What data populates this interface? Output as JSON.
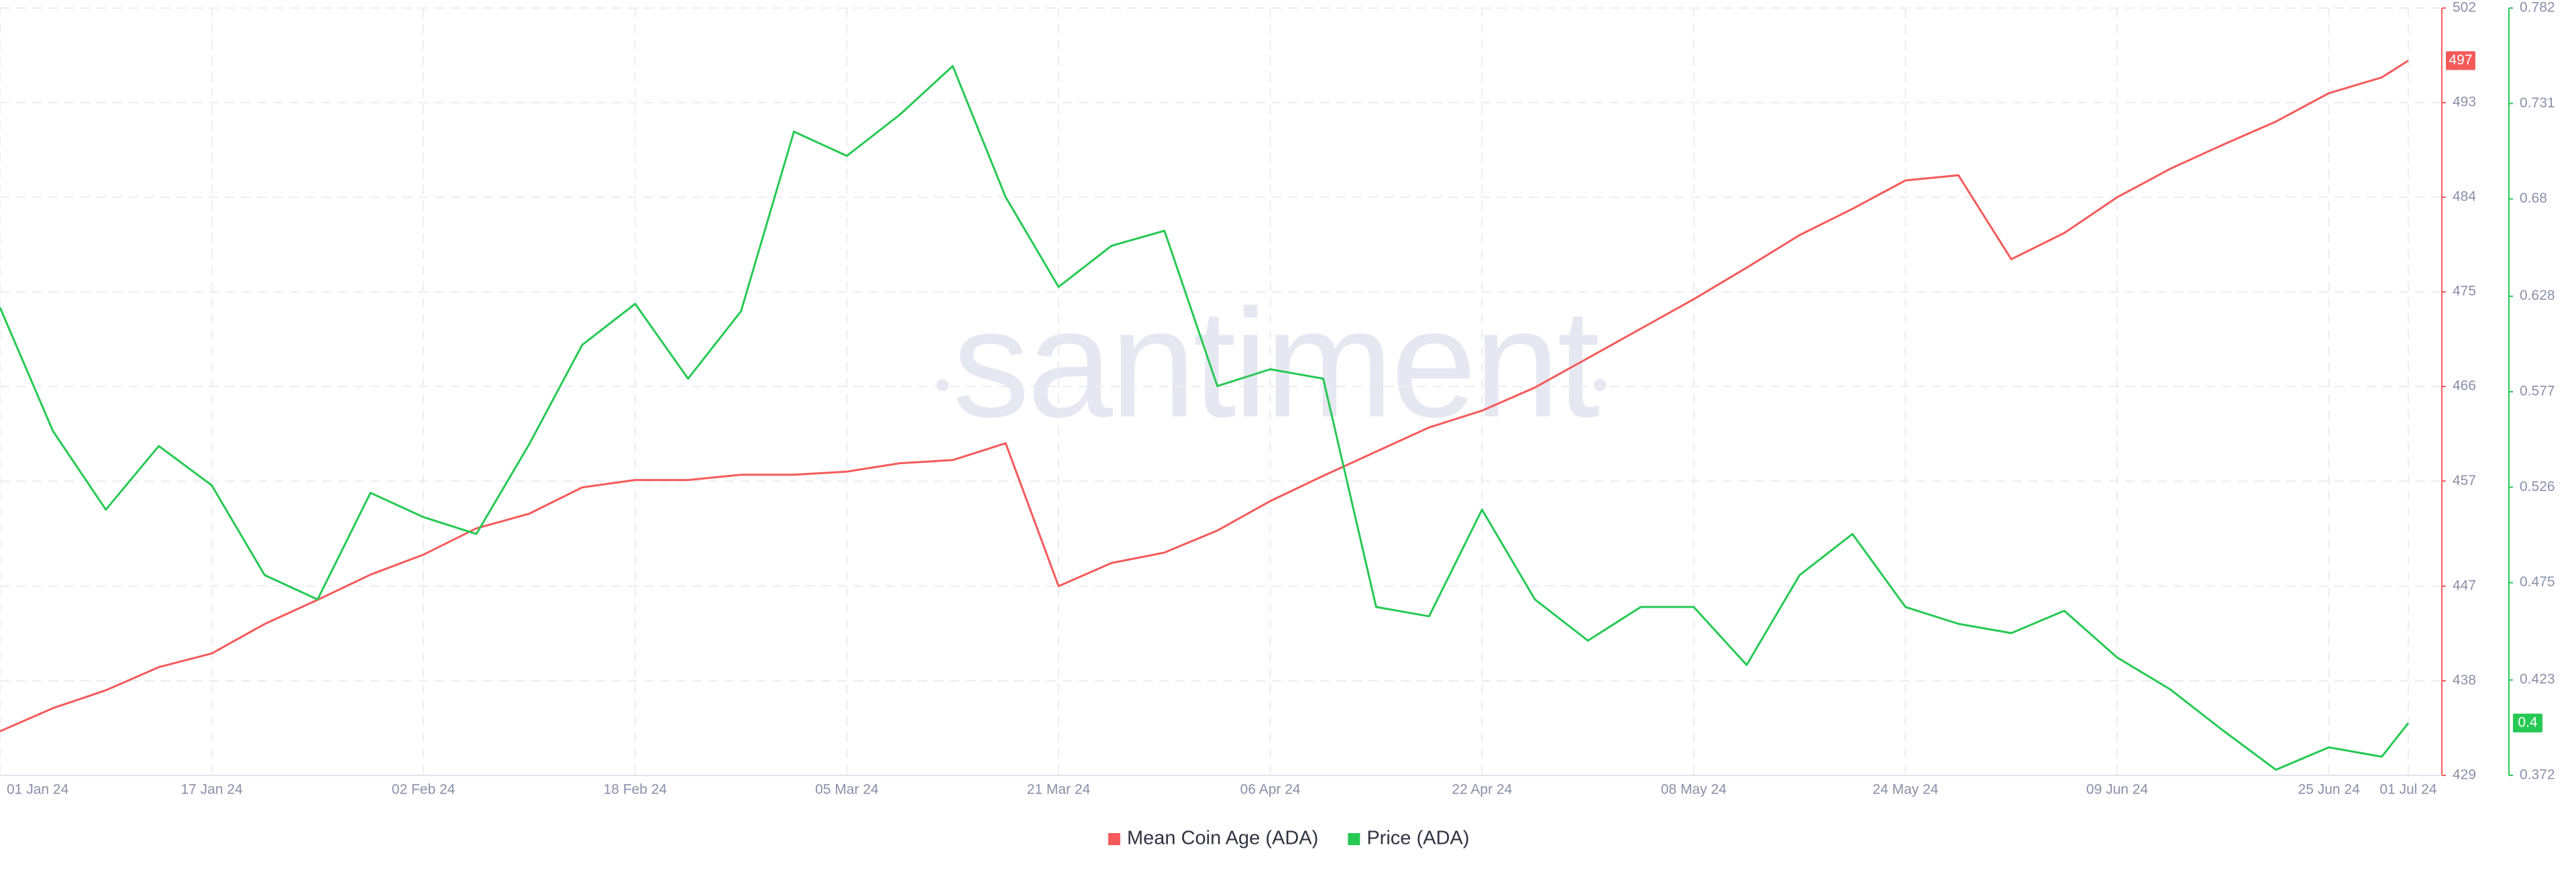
{
  "chart_data": {
    "type": "line",
    "watermark": "santiment",
    "x": [
      "2024-01-01",
      "2024-01-05",
      "2024-01-09",
      "2024-01-13",
      "2024-01-17",
      "2024-01-21",
      "2024-01-25",
      "2024-01-29",
      "2024-02-02",
      "2024-02-06",
      "2024-02-10",
      "2024-02-14",
      "2024-02-18",
      "2024-02-22",
      "2024-02-26",
      "2024-03-01",
      "2024-03-05",
      "2024-03-09",
      "2024-03-13",
      "2024-03-17",
      "2024-03-21",
      "2024-03-25",
      "2024-03-29",
      "2024-04-02",
      "2024-04-06",
      "2024-04-10",
      "2024-04-14",
      "2024-04-18",
      "2024-04-22",
      "2024-04-26",
      "2024-04-30",
      "2024-05-04",
      "2024-05-08",
      "2024-05-12",
      "2024-05-16",
      "2024-05-20",
      "2024-05-24",
      "2024-05-28",
      "2024-06-01",
      "2024-06-05",
      "2024-06-09",
      "2024-06-13",
      "2024-06-17",
      "2024-06-21",
      "2024-06-25",
      "2024-06-29",
      "2024-07-01"
    ],
    "xlim": [
      "2024-01-01",
      "2024-07-01"
    ],
    "xticks": [
      {
        "value": "2024-01-01",
        "label": "01 Jan 24"
      },
      {
        "value": "2024-01-17",
        "label": "17 Jan 24"
      },
      {
        "value": "2024-02-02",
        "label": "02 Feb 24"
      },
      {
        "value": "2024-02-18",
        "label": "18 Feb 24"
      },
      {
        "value": "2024-03-05",
        "label": "05 Mar 24"
      },
      {
        "value": "2024-03-21",
        "label": "21 Mar 24"
      },
      {
        "value": "2024-04-06",
        "label": "06 Apr 24"
      },
      {
        "value": "2024-04-22",
        "label": "22 Apr 24"
      },
      {
        "value": "2024-05-08",
        "label": "08 May 24"
      },
      {
        "value": "2024-05-24",
        "label": "24 May 24"
      },
      {
        "value": "2024-06-09",
        "label": "09 Jun 24"
      },
      {
        "value": "2024-06-25",
        "label": "25 Jun 24"
      },
      {
        "value": "2024-07-01",
        "label": "01 Jul 24"
      }
    ],
    "ylim": [
      429,
      502
    ],
    "yticks": [
      429,
      438,
      447,
      457,
      466,
      475,
      484,
      493,
      502
    ],
    "y2lim": [
      0.372,
      0.782
    ],
    "y2ticks": [
      0.372,
      0.423,
      0.475,
      0.526,
      0.577,
      0.628,
      0.68,
      0.731,
      0.782
    ],
    "grid": true,
    "legend": "bottom",
    "series": [
      {
        "name": "Mean Coin Age (ADA)",
        "color": "#f55a5a",
        "axis": "y",
        "values": [
          433.2,
          435.4,
          437.1,
          439.3,
          440.6,
          443.4,
          445.7,
          448.1,
          450.0,
          452.5,
          453.9,
          456.4,
          457.1,
          457.1,
          457.6,
          457.6,
          457.9,
          458.7,
          459.0,
          460.6,
          447.0,
          449.2,
          450.2,
          452.3,
          455.1,
          457.5,
          459.8,
          462.1,
          463.7,
          465.9,
          468.7,
          471.5,
          474.3,
          477.3,
          480.4,
          482.9,
          485.6,
          486.1,
          478.1,
          480.6,
          484.0,
          486.7,
          489.0,
          491.2,
          493.9,
          495.4,
          497
        ]
      },
      {
        "name": "Price (ADA)",
        "color": "#26c953",
        "axis": "y2",
        "values": [
          0.622,
          0.556,
          0.514,
          0.548,
          0.527,
          0.479,
          0.466,
          0.523,
          0.51,
          0.501,
          0.549,
          0.602,
          0.624,
          0.584,
          0.62,
          0.716,
          0.703,
          0.725,
          0.751,
          0.681,
          0.633,
          0.655,
          0.663,
          0.58,
          0.589,
          0.584,
          0.462,
          0.457,
          0.514,
          0.466,
          0.444,
          0.462,
          0.462,
          0.431,
          0.479,
          0.501,
          0.462,
          0.453,
          0.448,
          0.46,
          0.435,
          0.418,
          0.396,
          0.375,
          0.387,
          0.382,
          0.4
        ]
      }
    ]
  }
}
